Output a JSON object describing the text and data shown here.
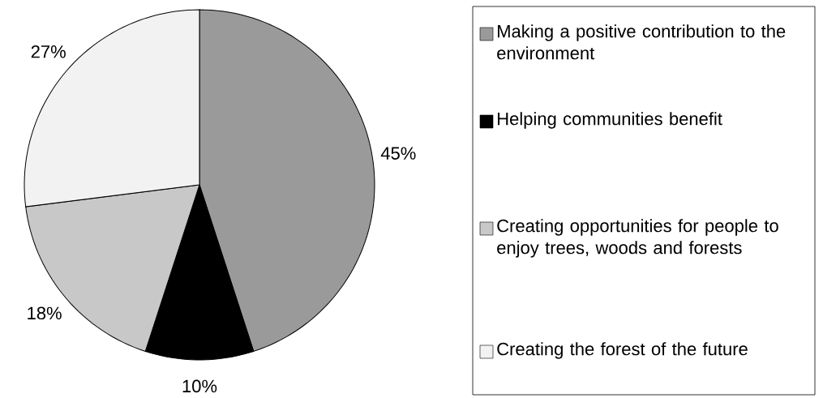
{
  "chart_data": {
    "type": "pie",
    "categories": [
      "Making a positive contribution to the environment",
      "Helping communities benefit",
      "Creating opportunities for people to enjoy trees, woods and forests",
      "Creating the forest of the future"
    ],
    "values": [
      45,
      10,
      18,
      27
    ],
    "colors": [
      "#9a9a9a",
      "#000000",
      "#c8c8c8",
      "#f2f2f2"
    ],
    "value_labels": [
      "45%",
      "10%",
      "18%",
      "27%"
    ],
    "legend": "right"
  }
}
